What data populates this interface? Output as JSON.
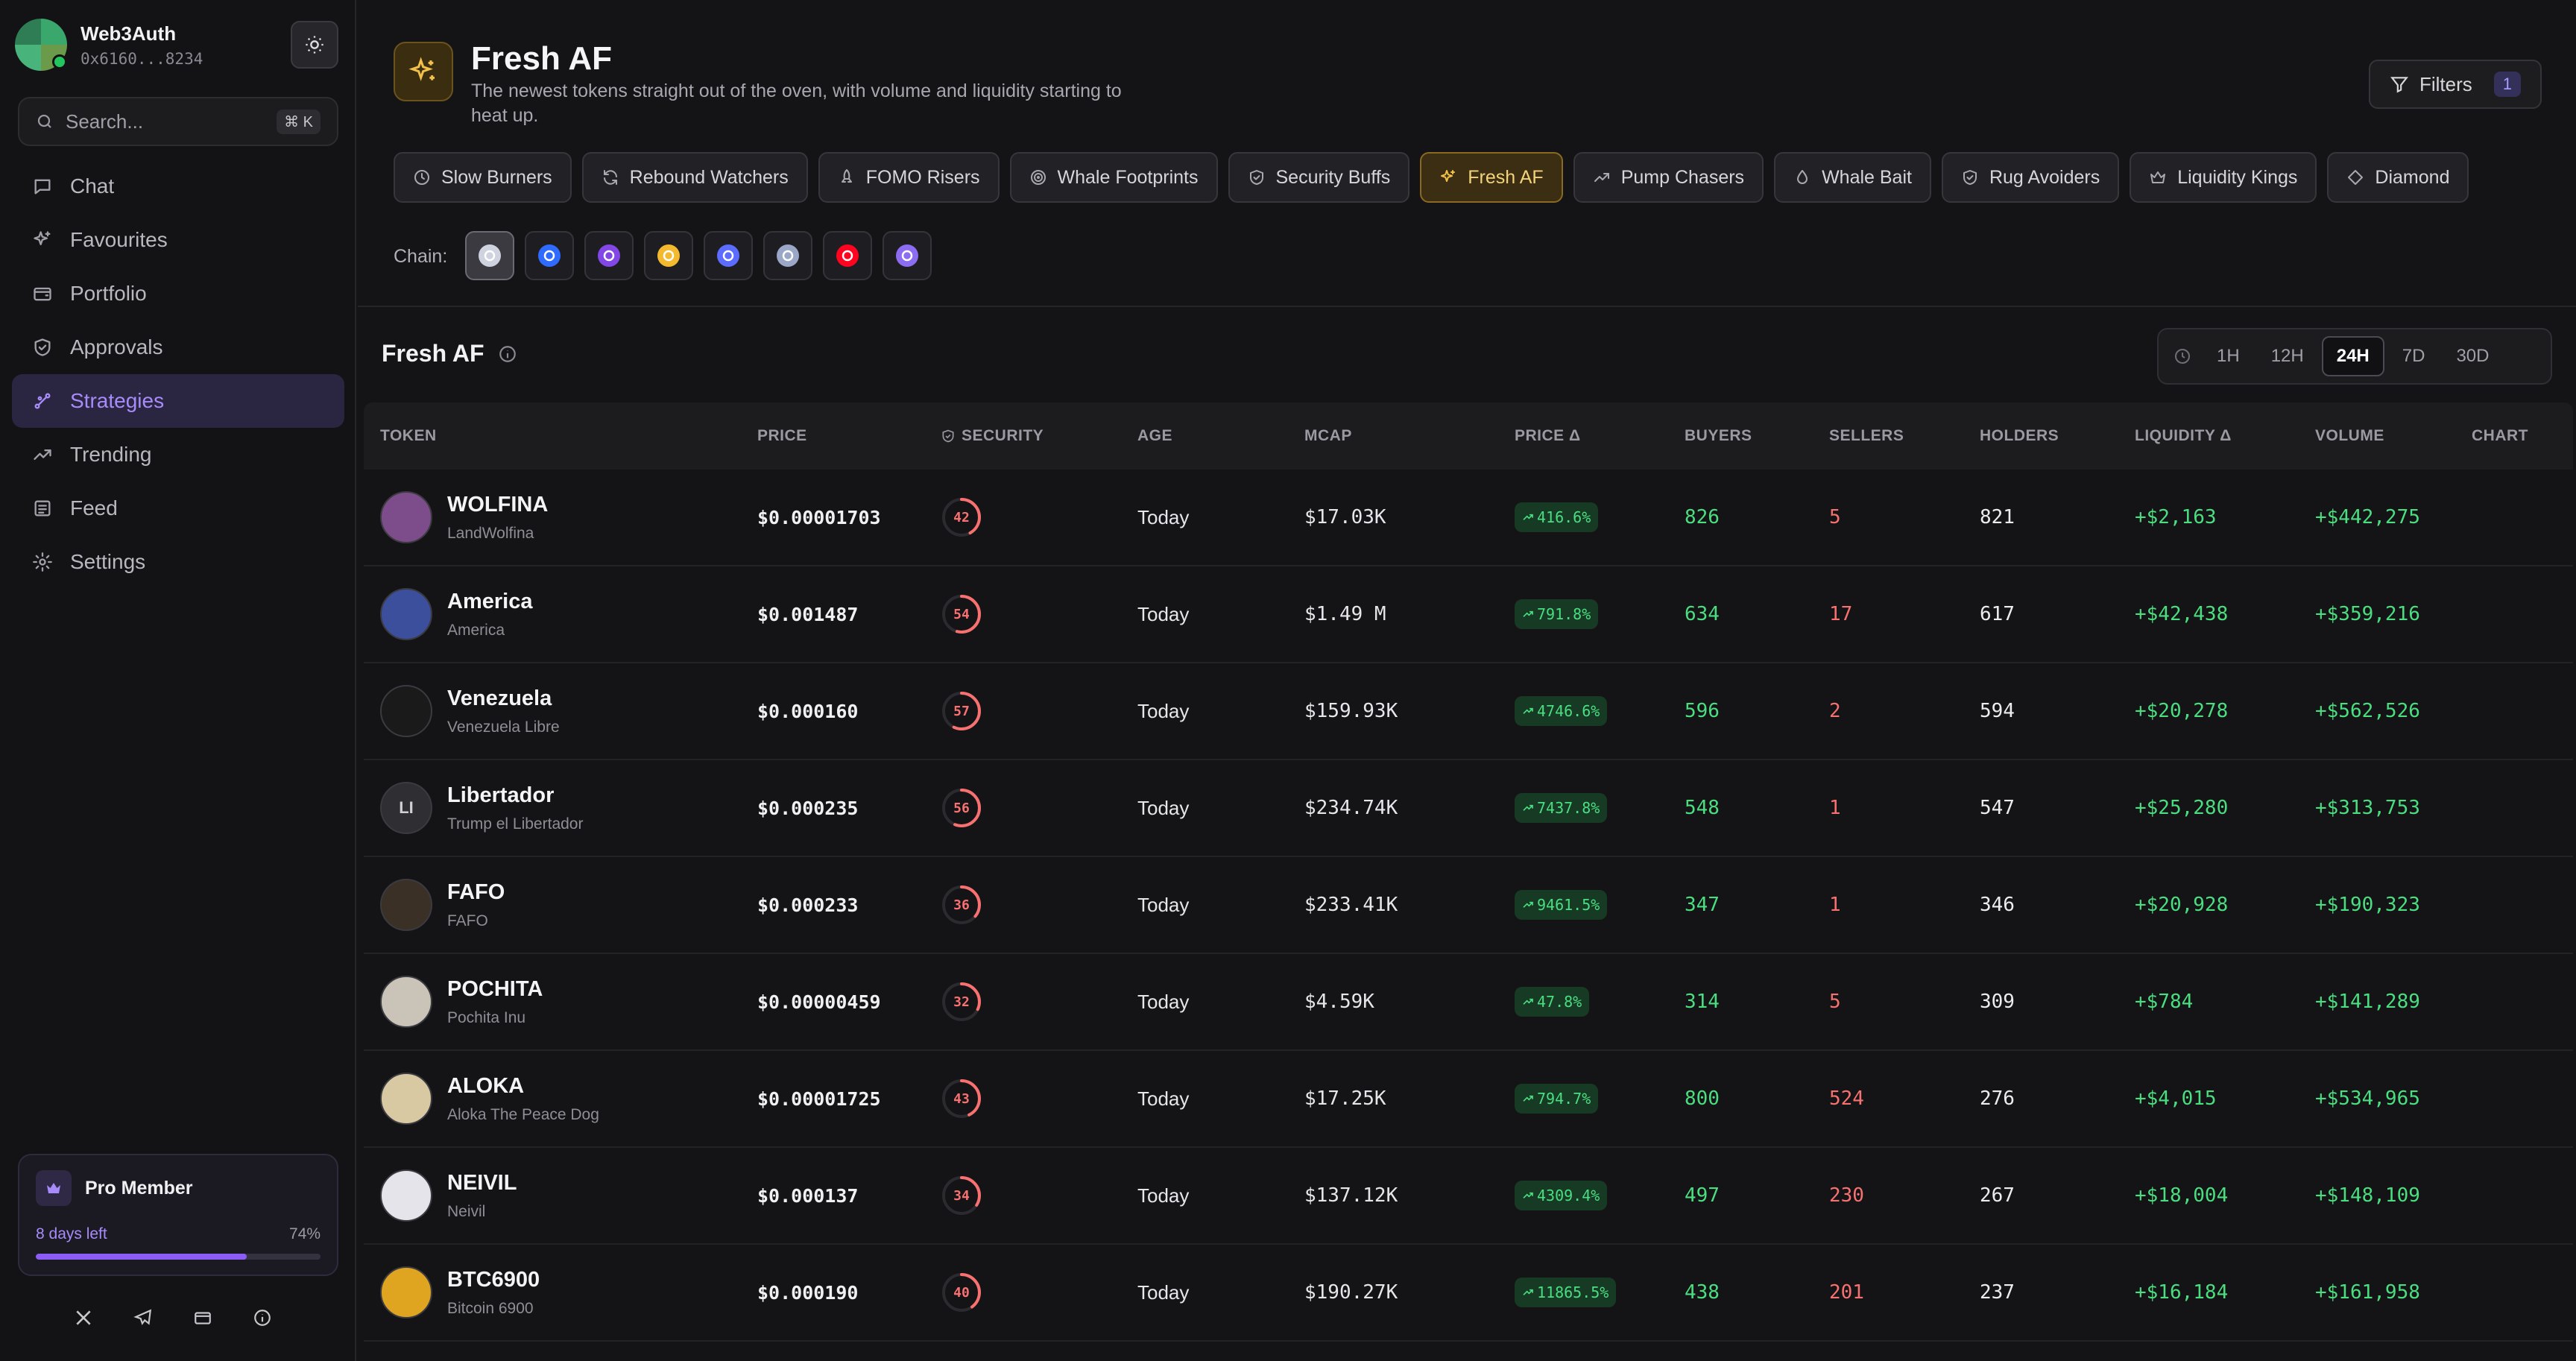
{
  "account": {
    "name": "Web3Auth",
    "address": "0x6160...8234"
  },
  "search": {
    "placeholder": "Search...",
    "shortcut": "⌘ K"
  },
  "nav": [
    {
      "label": "Chat",
      "icon": "chat-icon",
      "active": false
    },
    {
      "label": "Favourites",
      "icon": "sparkle-icon",
      "active": false
    },
    {
      "label": "Portfolio",
      "icon": "wallet-icon",
      "active": false
    },
    {
      "label": "Approvals",
      "icon": "shield-check-icon",
      "active": false
    },
    {
      "label": "Strategies",
      "icon": "strategy-icon",
      "active": true
    },
    {
      "label": "Trending",
      "icon": "trending-icon",
      "active": false
    },
    {
      "label": "Feed",
      "icon": "feed-icon",
      "active": false
    },
    {
      "label": "Settings",
      "icon": "gear-icon",
      "active": false
    }
  ],
  "pro": {
    "title": "Pro Member",
    "days_left": "8 days left",
    "percent_label": "74%",
    "percent": 0.74
  },
  "header": {
    "title": "Fresh AF",
    "description": "The newest tokens straight out of the oven, with volume and liquidity starting to heat up.",
    "filters_label": "Filters",
    "filters_count": "1"
  },
  "strategies": [
    {
      "label": "Slow Burners",
      "icon": "clock-icon",
      "active": false
    },
    {
      "label": "Rebound Watchers",
      "icon": "refresh-icon",
      "active": false
    },
    {
      "label": "FOMO Risers",
      "icon": "rocket-icon",
      "active": false
    },
    {
      "label": "Whale Footprints",
      "icon": "target-icon",
      "active": false
    },
    {
      "label": "Security Buffs",
      "icon": "shield-icon",
      "active": false
    },
    {
      "label": "Fresh AF",
      "icon": "sparkle-icon",
      "active": true
    },
    {
      "label": "Pump Chasers",
      "icon": "trending-icon",
      "active": false
    },
    {
      "label": "Whale Bait",
      "icon": "drop-icon",
      "active": false
    },
    {
      "label": "Rug Avoiders",
      "icon": "shield-check-icon",
      "active": false
    },
    {
      "label": "Liquidity Kings",
      "icon": "crown-icon",
      "active": false
    },
    {
      "label": "Diamond",
      "icon": "diamond-icon",
      "active": false
    }
  ],
  "chain": {
    "label": "Chain:",
    "items": [
      {
        "icon": "ethereum-icon",
        "color": "#cfd3e0",
        "active": true
      },
      {
        "icon": "base-icon",
        "color": "#2f6bff",
        "active": false
      },
      {
        "icon": "polygon-icon",
        "color": "#8247e5",
        "active": false
      },
      {
        "icon": "bnb-icon",
        "color": "#f3ba2f",
        "active": false
      },
      {
        "icon": "blast-icon",
        "color": "#5b6cff",
        "active": false
      },
      {
        "icon": "arbitrum-icon",
        "color": "#9aa7c7",
        "active": false
      },
      {
        "icon": "optimism-icon",
        "color": "#ff0420",
        "active": false
      },
      {
        "icon": "zksync-icon",
        "color": "#8c6cf0",
        "active": false
      }
    ]
  },
  "section": {
    "title": "Fresh AF"
  },
  "timeframes": [
    {
      "label": "1H",
      "active": false
    },
    {
      "label": "12H",
      "active": false
    },
    {
      "label": "24H",
      "active": true
    },
    {
      "label": "7D",
      "active": false
    },
    {
      "label": "30D",
      "active": false
    }
  ],
  "table": {
    "columns": {
      "token": "TOKEN",
      "price": "PRICE",
      "security": "SECURITY",
      "age": "AGE",
      "mcap": "MCAP",
      "price_delta": "PRICE Δ",
      "buyers": "BUYERS",
      "sellers": "SELLERS",
      "holders": "HOLDERS",
      "liquidity_delta": "LIQUIDITY Δ",
      "volume": "VOLUME",
      "chart": "CHART"
    },
    "rows": [
      {
        "symbol": "WOLFINA",
        "name": "LandWolfina",
        "initials": "",
        "avatar_color": "#7c4d8a",
        "price": "$0.00001703",
        "security": 42,
        "age": "Today",
        "mcap": "$17.03K",
        "price_delta": "416.6%",
        "buyers": "826",
        "sellers": "5",
        "holders": "821",
        "liquidity_delta": "+$2,163",
        "volume": "+$442,275"
      },
      {
        "symbol": "America",
        "name": "America",
        "initials": "",
        "avatar_color": "#3b4f9c",
        "price": "$0.001487",
        "security": 54,
        "age": "Today",
        "mcap": "$1.49 M",
        "price_delta": "791.8%",
        "buyers": "634",
        "sellers": "17",
        "holders": "617",
        "liquidity_delta": "+$42,438",
        "volume": "+$359,216"
      },
      {
        "symbol": "Venezuela",
        "name": "Venezuela Libre",
        "initials": "",
        "avatar_color": "#1a1a1a",
        "price": "$0.000160",
        "security": 57,
        "age": "Today",
        "mcap": "$159.93K",
        "price_delta": "4746.6%",
        "buyers": "596",
        "sellers": "2",
        "holders": "594",
        "liquidity_delta": "+$20,278",
        "volume": "+$562,526"
      },
      {
        "symbol": "Libertador",
        "name": "Trump el Libertador",
        "initials": "LI",
        "avatar_color": "#2e2e33",
        "price": "$0.000235",
        "security": 56,
        "age": "Today",
        "mcap": "$234.74K",
        "price_delta": "7437.8%",
        "buyers": "548",
        "sellers": "1",
        "holders": "547",
        "liquidity_delta": "+$25,280",
        "volume": "+$313,753"
      },
      {
        "symbol": "FAFO",
        "name": "FAFO",
        "initials": "",
        "avatar_color": "#3a3026",
        "price": "$0.000233",
        "security": 36,
        "age": "Today",
        "mcap": "$233.41K",
        "price_delta": "9461.5%",
        "buyers": "347",
        "sellers": "1",
        "holders": "346",
        "liquidity_delta": "+$20,928",
        "volume": "+$190,323"
      },
      {
        "symbol": "POCHITA",
        "name": "Pochita Inu",
        "initials": "",
        "avatar_color": "#c9c3b8",
        "price": "$0.00000459",
        "security": 32,
        "age": "Today",
        "mcap": "$4.59K",
        "price_delta": "47.8%",
        "buyers": "314",
        "sellers": "5",
        "holders": "309",
        "liquidity_delta": "+$784",
        "volume": "+$141,289"
      },
      {
        "symbol": "ALOKA",
        "name": "Aloka The Peace Dog",
        "initials": "",
        "avatar_color": "#d9c9a3",
        "price": "$0.00001725",
        "security": 43,
        "age": "Today",
        "mcap": "$17.25K",
        "price_delta": "794.7%",
        "buyers": "800",
        "sellers": "524",
        "holders": "276",
        "liquidity_delta": "+$4,015",
        "volume": "+$534,965"
      },
      {
        "symbol": "NEIVIL",
        "name": "Neivil",
        "initials": "",
        "avatar_color": "#e4e4ea",
        "price": "$0.000137",
        "security": 34,
        "age": "Today",
        "mcap": "$137.12K",
        "price_delta": "4309.4%",
        "buyers": "497",
        "sellers": "230",
        "holders": "267",
        "liquidity_delta": "+$18,004",
        "volume": "+$148,109"
      },
      {
        "symbol": "BTC6900",
        "name": "Bitcoin 6900",
        "initials": "",
        "avatar_color": "#e0a520",
        "price": "$0.000190",
        "security": 40,
        "age": "Today",
        "mcap": "$190.27K",
        "price_delta": "11865.5%",
        "buyers": "438",
        "sellers": "201",
        "holders": "237",
        "liquidity_delta": "+$16,184",
        "volume": "+$161,958"
      }
    ]
  }
}
